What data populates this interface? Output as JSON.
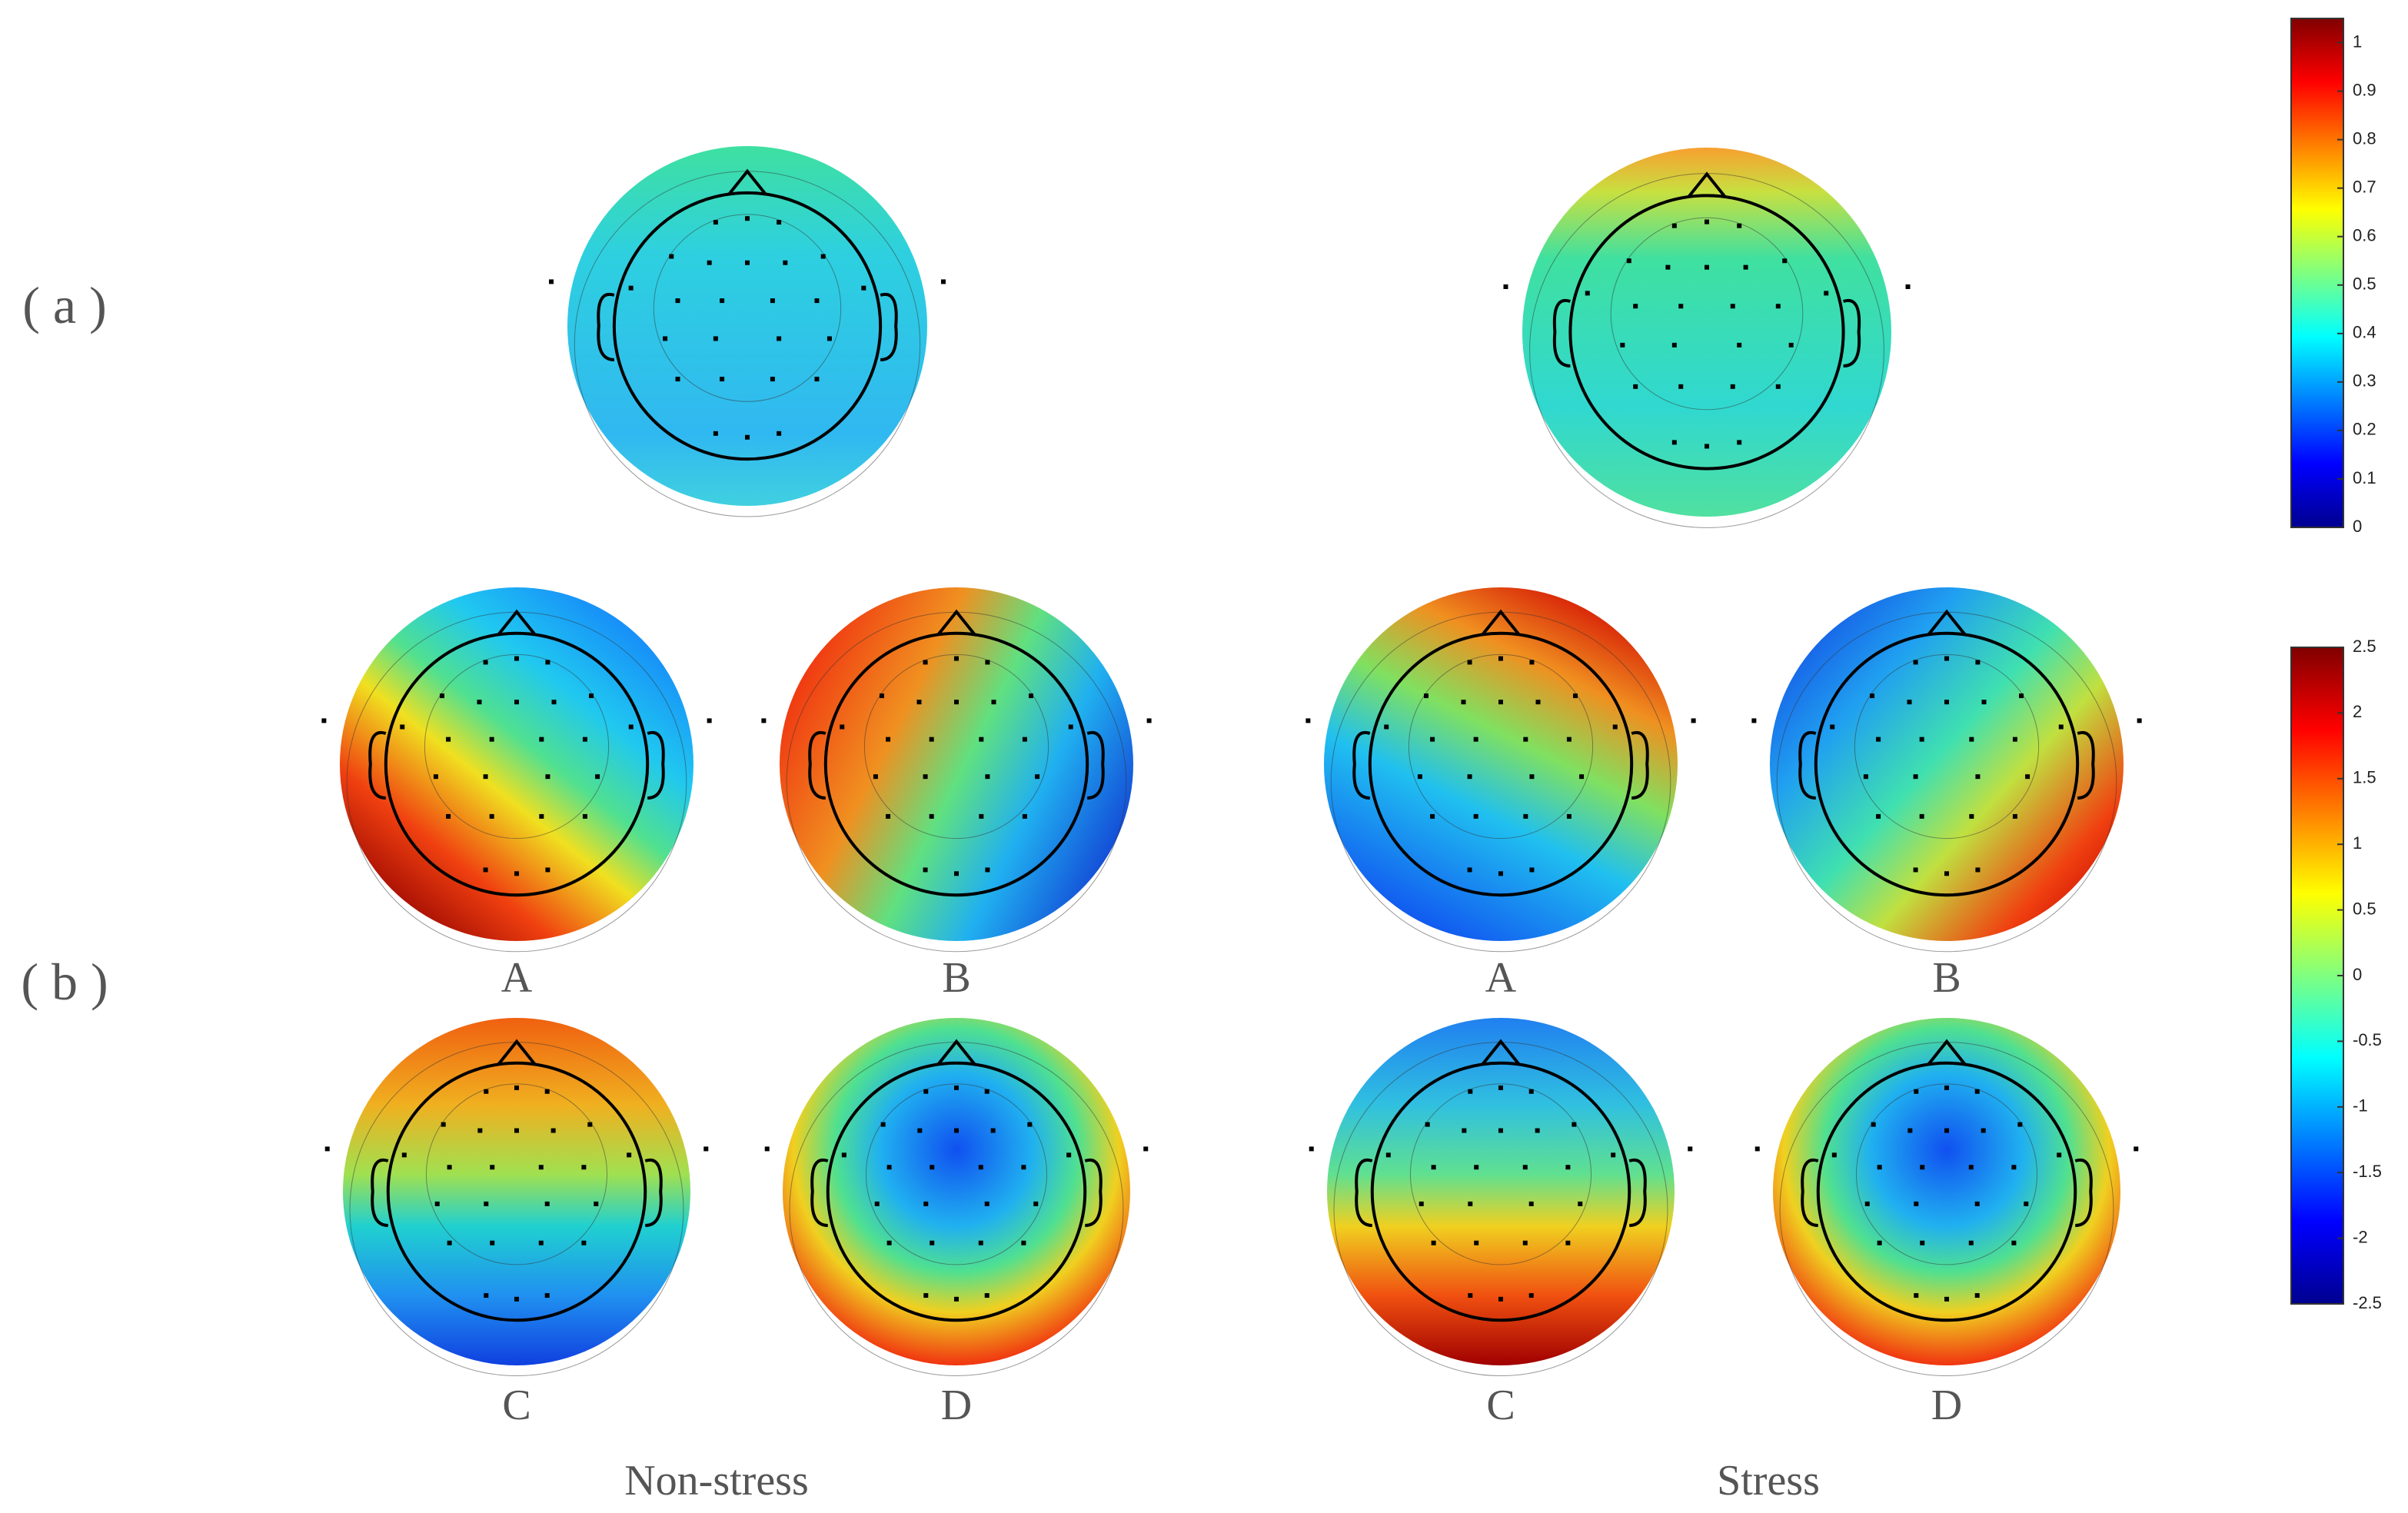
{
  "row_labels": [
    "( a )",
    "( b )"
  ],
  "map_labels": [
    "A",
    "B",
    "C",
    "D",
    "A",
    "B",
    "C",
    "D"
  ],
  "group_labels": [
    "Non-stress",
    "Stress"
  ],
  "colorbars": [
    {
      "ylim": [
        0,
        1.05
      ],
      "yticks": [
        0,
        0.1,
        0.2,
        0.3,
        0.4,
        0.5,
        0.6,
        0.7,
        0.8,
        0.9,
        1
      ]
    },
    {
      "ylim": [
        -2.5,
        2.5
      ],
      "yticks": [
        -2.5,
        -2,
        -1.5,
        -1,
        -0.5,
        0,
        0.5,
        1,
        1.5,
        2,
        2.5
      ]
    }
  ]
}
